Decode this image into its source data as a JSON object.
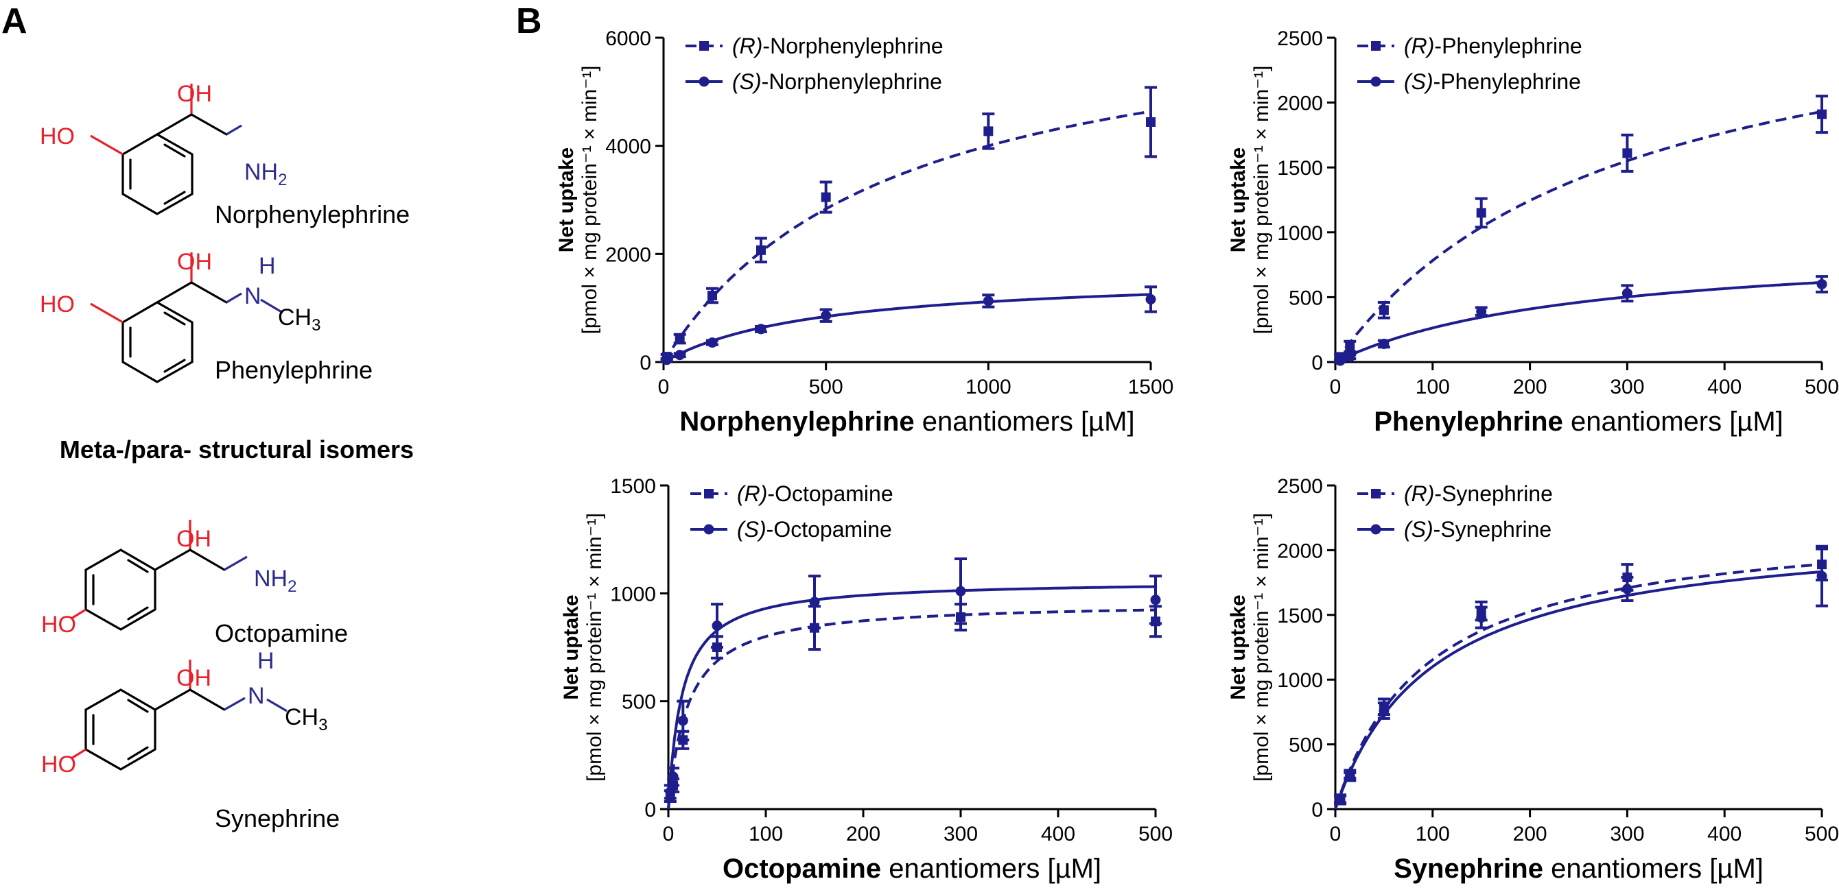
{
  "panels": {
    "a_label": "A",
    "b_label": "B"
  },
  "molecules": [
    {
      "name": "Norphenylephrine",
      "oh_top": "OH",
      "ho_ring": "HO",
      "amine": "NH",
      "amine_sub": "2"
    },
    {
      "name": "Phenylephrine",
      "oh_top": "OH",
      "ho_ring": "HO",
      "amine_h": "H",
      "amine_n": "N",
      "methyl": "CH",
      "methyl_sub": "3"
    },
    {
      "name": "Octopamine",
      "oh_top": "OH",
      "ho_ring": "HO",
      "amine": "NH",
      "amine_sub": "2"
    },
    {
      "name": "Synephrine",
      "oh_top": "OH",
      "ho_ring": "HO",
      "amine_h": "H",
      "amine_n": "N",
      "methyl": "CH",
      "methyl_sub": "3"
    }
  ],
  "isomer_title": "Meta-/para- structural isomers",
  "colors": {
    "series": "#1e1e8c",
    "hydroxyl": "#e8202a",
    "amine": "#2b2b8f"
  },
  "chart_data": [
    {
      "type": "scatter",
      "xlabel_bold": "Norphenylephrine",
      "xlabel_rest": " enantiomers [µM]",
      "ylabel_bold": "Net uptake",
      "ylabel_rest": "[pmol × mg protein⁻¹ × min⁻¹]",
      "xlim": [
        0,
        1500
      ],
      "ylim": [
        0,
        6000
      ],
      "xticks": [
        0,
        500,
        1000,
        1500
      ],
      "yticks": [
        0,
        2000,
        4000,
        6000
      ],
      "legend_position": "top-left",
      "series": [
        {
          "name_italic": "(R)",
          "name_rest": "-Norphenylephrine",
          "style": "dashed",
          "vmax": 6800,
          "km": 700,
          "x": [
            10,
            50,
            150,
            300,
            500,
            1000,
            1500
          ],
          "y": [
            100,
            430,
            1230,
            2070,
            3050,
            4270,
            4440
          ],
          "err": [
            40,
            80,
            130,
            220,
            280,
            320,
            640
          ]
        },
        {
          "name_italic": "(S)",
          "name_rest": "-Norphenylephrine",
          "style": "solid",
          "vmax": 1650,
          "km": 480,
          "x": [
            10,
            50,
            150,
            300,
            500,
            1000,
            1500
          ],
          "y": [
            40,
            130,
            360,
            610,
            860,
            1130,
            1160
          ],
          "err": [
            20,
            30,
            40,
            50,
            110,
            110,
            230
          ]
        }
      ]
    },
    {
      "type": "scatter",
      "xlabel_bold": "Phenylephrine",
      "xlabel_rest": " enantiomers [µM]",
      "ylabel_bold": "Net uptake",
      "ylabel_rest": "[pmol × mg protein⁻¹ × min⁻¹]",
      "xlim": [
        0,
        500
      ],
      "ylim": [
        0,
        2500
      ],
      "xticks": [
        0,
        100,
        200,
        300,
        400,
        500
      ],
      "yticks": [
        0,
        500,
        1000,
        1500,
        2000,
        2500
      ],
      "legend_position": "top-left",
      "series": [
        {
          "name_italic": "(R)",
          "name_rest": "-Phenylephrine",
          "style": "dashed",
          "vmax": 3050,
          "km": 290,
          "x": [
            5,
            15,
            50,
            150,
            300,
            500
          ],
          "y": [
            40,
            120,
            400,
            1150,
            1610,
            1910
          ],
          "err": [
            20,
            40,
            60,
            110,
            140,
            140
          ]
        },
        {
          "name_italic": "(S)",
          "name_rest": "-Phenylephrine",
          "style": "solid",
          "vmax": 920,
          "km": 250,
          "x": [
            5,
            15,
            50,
            150,
            300,
            500
          ],
          "y": [
            10,
            40,
            140,
            390,
            530,
            600
          ],
          "err": [
            10,
            15,
            25,
            30,
            60,
            60
          ]
        }
      ]
    },
    {
      "type": "scatter",
      "xlabel_bold": "Octopamine",
      "xlabel_rest": " enantiomers [µM]",
      "ylabel_bold": "Net uptake",
      "ylabel_rest": "[pmol × mg protein⁻¹ × min⁻¹]",
      "xlim": [
        0,
        500
      ],
      "ylim": [
        0,
        1500
      ],
      "xticks": [
        0,
        100,
        200,
        300,
        400,
        500
      ],
      "yticks": [
        0,
        500,
        1000,
        1500
      ],
      "legend_position": "top-left",
      "series": [
        {
          "name_italic": "(R)",
          "name_rest": "-Octopamine",
          "style": "dashed",
          "vmax": 960,
          "km": 20,
          "x": [
            2,
            5,
            15,
            50,
            150,
            300,
            500
          ],
          "y": [
            60,
            110,
            320,
            750,
            840,
            890,
            870
          ],
          "err": [
            25,
            30,
            40,
            50,
            100,
            60,
            70
          ]
        },
        {
          "name_italic": "(S)",
          "name_rest": "-Octopamine",
          "style": "solid",
          "vmax": 1060,
          "km": 14,
          "x": [
            2,
            5,
            15,
            50,
            150,
            300,
            500
          ],
          "y": [
            80,
            150,
            410,
            850,
            960,
            1010,
            970
          ],
          "err": [
            30,
            40,
            90,
            100,
            120,
            150,
            110
          ]
        }
      ]
    },
    {
      "type": "scatter",
      "xlabel_bold": "Synephrine",
      "xlabel_rest": " enantiomers [µM]",
      "ylabel_bold": "Net uptake",
      "ylabel_rest": "[pmol × mg protein⁻¹ × min⁻¹]",
      "xlim": [
        0,
        500
      ],
      "ylim": [
        0,
        2500
      ],
      "xticks": [
        0,
        100,
        200,
        300,
        400,
        500
      ],
      "yticks": [
        0,
        500,
        1000,
        1500,
        2000,
        2500
      ],
      "legend_position": "top-left",
      "series": [
        {
          "name_italic": "(R)",
          "name_rest": "-Synephrine",
          "style": "dashed",
          "vmax": 2250,
          "km": 95,
          "x": [
            5,
            15,
            50,
            150,
            300,
            500
          ],
          "y": [
            80,
            270,
            790,
            1530,
            1790,
            1890
          ],
          "err": [
            30,
            30,
            60,
            70,
            100,
            120
          ]
        },
        {
          "name_italic": "(S)",
          "name_rest": "-Synephrine",
          "style": "solid",
          "vmax": 2200,
          "km": 100,
          "x": [
            5,
            15,
            50,
            150,
            300,
            500
          ],
          "y": [
            70,
            250,
            760,
            1480,
            1700,
            1800
          ],
          "err": [
            30,
            30,
            60,
            80,
            90,
            230
          ]
        }
      ]
    }
  ]
}
